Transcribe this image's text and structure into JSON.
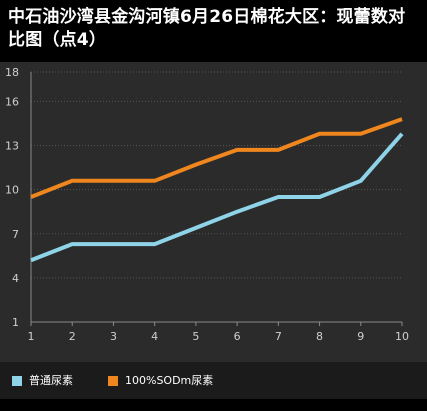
{
  "title": "中石油沙湾县金沟河镇6月26日棉花大区：现蕾数对比图（点4）",
  "chart_data": {
    "type": "line",
    "title": "中石油沙湾县金沟河镇6月26日棉花大区：现蕾数对比图（点4）",
    "xlabel": "",
    "ylabel": "",
    "x": [
      1,
      2,
      3,
      4,
      5,
      6,
      7,
      8,
      9,
      10
    ],
    "ylim": [
      1,
      18
    ],
    "yticks": [
      1,
      4,
      7,
      10,
      13,
      16,
      18
    ],
    "grid": true,
    "legend_position": "bottom",
    "series": [
      {
        "name": "普通尿素",
        "color": "#8fd3e8",
        "values": [
          5.2,
          6.3,
          6.3,
          6.3,
          7.4,
          8.5,
          9.5,
          9.5,
          10.6,
          13.8
        ]
      },
      {
        "name": "100%SODm尿素",
        "color": "#f0861e",
        "values": [
          9.5,
          10.6,
          10.6,
          10.6,
          11.7,
          12.7,
          12.7,
          13.8,
          13.8,
          14.8
        ]
      }
    ]
  },
  "legend": {
    "items": [
      {
        "label": "普通尿素",
        "color": "#8fd3e8"
      },
      {
        "label": "100%SODm尿素",
        "color": "#f0861e"
      }
    ]
  }
}
